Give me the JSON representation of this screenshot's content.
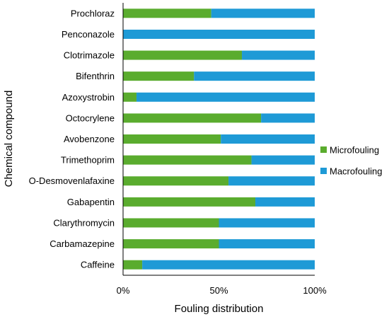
{
  "chart_data": {
    "type": "bar",
    "orientation": "horizontal",
    "stacked": "percent",
    "title": "",
    "xlabel": "Fouling distribution",
    "ylabel": "Chemical compound",
    "xlim": [
      0,
      100
    ],
    "xticks": [
      0,
      50,
      100
    ],
    "xtick_labels": [
      "0%",
      "50%",
      "100%"
    ],
    "grid": false,
    "legend_position": "right",
    "categories": [
      "Prochloraz",
      "Penconazole",
      "Clotrimazole",
      "Bifenthrin",
      "Azoxystrobin",
      "Octocrylene",
      "Avobenzone",
      "Trimethoprim",
      "O-Desmovenlafaxine",
      "Gabapentin",
      "Clarythromycin",
      "Carbamazepine",
      "Caffeine"
    ],
    "series": [
      {
        "name": "Microfouling",
        "color": "#5aac2e",
        "values": [
          46,
          0,
          62,
          37,
          7,
          72,
          51,
          67,
          55,
          69,
          50,
          50,
          10
        ]
      },
      {
        "name": "Macrofouling",
        "color": "#1e9ad6",
        "values": [
          54,
          100,
          38,
          63,
          93,
          28,
          49,
          33,
          45,
          31,
          50,
          50,
          90
        ]
      }
    ]
  }
}
